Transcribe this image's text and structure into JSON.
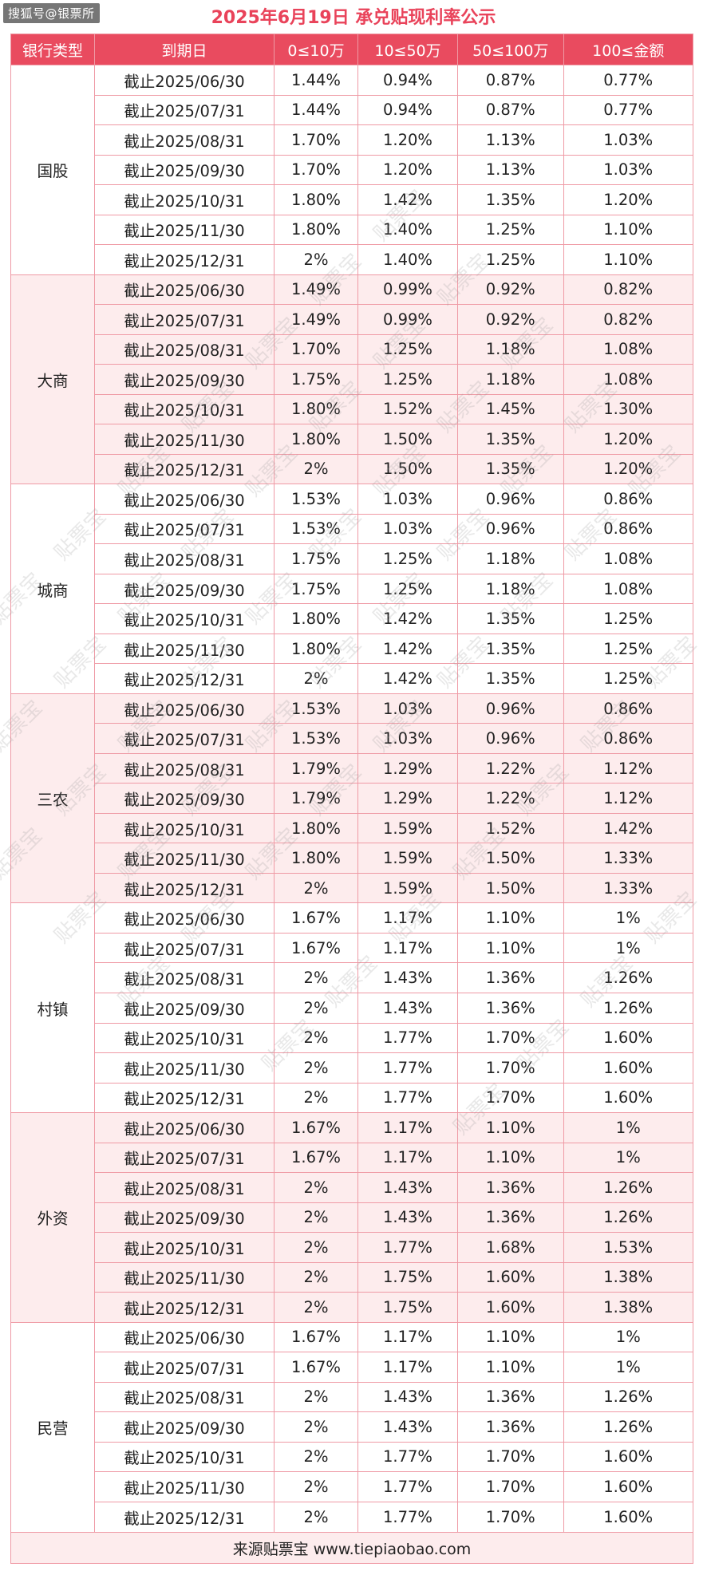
{
  "watermark_top": "搜狐号@银票所",
  "title": "2025年6月19日 承兑贴现利率公示",
  "headers": [
    "银行类型",
    "到期日",
    "0≤10万",
    "10≤50万",
    "50≤100万",
    "100≤金额"
  ],
  "groups": [
    {
      "name": "国股",
      "rows": [
        [
          "截止2025/06/30",
          "1.44%",
          "0.94%",
          "0.87%",
          "0.77%"
        ],
        [
          "截止2025/07/31",
          "1.44%",
          "0.94%",
          "0.87%",
          "0.77%"
        ],
        [
          "截止2025/08/31",
          "1.70%",
          "1.20%",
          "1.13%",
          "1.03%"
        ],
        [
          "截止2025/09/30",
          "1.70%",
          "1.20%",
          "1.13%",
          "1.03%"
        ],
        [
          "截止2025/10/31",
          "1.80%",
          "1.42%",
          "1.35%",
          "1.20%"
        ],
        [
          "截止2025/11/30",
          "1.80%",
          "1.40%",
          "1.25%",
          "1.10%"
        ],
        [
          "截止2025/12/31",
          "2%",
          "1.40%",
          "1.25%",
          "1.10%"
        ]
      ]
    },
    {
      "name": "大商",
      "rows": [
        [
          "截止2025/06/30",
          "1.49%",
          "0.99%",
          "0.92%",
          "0.82%"
        ],
        [
          "截止2025/07/31",
          "1.49%",
          "0.99%",
          "0.92%",
          "0.82%"
        ],
        [
          "截止2025/08/31",
          "1.70%",
          "1.25%",
          "1.18%",
          "1.08%"
        ],
        [
          "截止2025/09/30",
          "1.75%",
          "1.25%",
          "1.18%",
          "1.08%"
        ],
        [
          "截止2025/10/31",
          "1.80%",
          "1.52%",
          "1.45%",
          "1.30%"
        ],
        [
          "截止2025/11/30",
          "1.80%",
          "1.50%",
          "1.35%",
          "1.20%"
        ],
        [
          "截止2025/12/31",
          "2%",
          "1.50%",
          "1.35%",
          "1.20%"
        ]
      ]
    },
    {
      "name": "城商",
      "rows": [
        [
          "截止2025/06/30",
          "1.53%",
          "1.03%",
          "0.96%",
          "0.86%"
        ],
        [
          "截止2025/07/31",
          "1.53%",
          "1.03%",
          "0.96%",
          "0.86%"
        ],
        [
          "截止2025/08/31",
          "1.75%",
          "1.25%",
          "1.18%",
          "1.08%"
        ],
        [
          "截止2025/09/30",
          "1.75%",
          "1.25%",
          "1.18%",
          "1.08%"
        ],
        [
          "截止2025/10/31",
          "1.80%",
          "1.42%",
          "1.35%",
          "1.25%"
        ],
        [
          "截止2025/11/30",
          "1.80%",
          "1.42%",
          "1.35%",
          "1.25%"
        ],
        [
          "截止2025/12/31",
          "2%",
          "1.42%",
          "1.35%",
          "1.25%"
        ]
      ]
    },
    {
      "name": "三农",
      "rows": [
        [
          "截止2025/06/30",
          "1.53%",
          "1.03%",
          "0.96%",
          "0.86%"
        ],
        [
          "截止2025/07/31",
          "1.53%",
          "1.03%",
          "0.96%",
          "0.86%"
        ],
        [
          "截止2025/08/31",
          "1.79%",
          "1.29%",
          "1.22%",
          "1.12%"
        ],
        [
          "截止2025/09/30",
          "1.79%",
          "1.29%",
          "1.22%",
          "1.12%"
        ],
        [
          "截止2025/10/31",
          "1.80%",
          "1.59%",
          "1.52%",
          "1.42%"
        ],
        [
          "截止2025/11/30",
          "1.80%",
          "1.59%",
          "1.50%",
          "1.33%"
        ],
        [
          "截止2025/12/31",
          "2%",
          "1.59%",
          "1.50%",
          "1.33%"
        ]
      ]
    },
    {
      "name": "村镇",
      "rows": [
        [
          "截止2025/06/30",
          "1.67%",
          "1.17%",
          "1.10%",
          "1%"
        ],
        [
          "截止2025/07/31",
          "1.67%",
          "1.17%",
          "1.10%",
          "1%"
        ],
        [
          "截止2025/08/31",
          "2%",
          "1.43%",
          "1.36%",
          "1.26%"
        ],
        [
          "截止2025/09/30",
          "2%",
          "1.43%",
          "1.36%",
          "1.26%"
        ],
        [
          "截止2025/10/31",
          "2%",
          "1.77%",
          "1.70%",
          "1.60%"
        ],
        [
          "截止2025/11/30",
          "2%",
          "1.77%",
          "1.70%",
          "1.60%"
        ],
        [
          "截止2025/12/31",
          "2%",
          "1.77%",
          "1.70%",
          "1.60%"
        ]
      ]
    },
    {
      "name": "外资",
      "rows": [
        [
          "截止2025/06/30",
          "1.67%",
          "1.17%",
          "1.10%",
          "1%"
        ],
        [
          "截止2025/07/31",
          "1.67%",
          "1.17%",
          "1.10%",
          "1%"
        ],
        [
          "截止2025/08/31",
          "2%",
          "1.43%",
          "1.36%",
          "1.26%"
        ],
        [
          "截止2025/09/30",
          "2%",
          "1.43%",
          "1.36%",
          "1.26%"
        ],
        [
          "截止2025/10/31",
          "2%",
          "1.77%",
          "1.68%",
          "1.53%"
        ],
        [
          "截止2025/11/30",
          "2%",
          "1.75%",
          "1.60%",
          "1.38%"
        ],
        [
          "截止2025/12/31",
          "2%",
          "1.75%",
          "1.60%",
          "1.38%"
        ]
      ]
    },
    {
      "name": "民营",
      "rows": [
        [
          "截止2025/06/30",
          "1.67%",
          "1.17%",
          "1.10%",
          "1%"
        ],
        [
          "截止2025/07/31",
          "1.67%",
          "1.17%",
          "1.10%",
          "1%"
        ],
        [
          "截止2025/08/31",
          "2%",
          "1.43%",
          "1.36%",
          "1.26%"
        ],
        [
          "截止2025/09/30",
          "2%",
          "1.43%",
          "1.36%",
          "1.26%"
        ],
        [
          "截止2025/10/31",
          "2%",
          "1.77%",
          "1.70%",
          "1.60%"
        ],
        [
          "截止2025/11/30",
          "2%",
          "1.77%",
          "1.70%",
          "1.60%"
        ],
        [
          "截止2025/12/31",
          "2%",
          "1.77%",
          "1.70%",
          "1.60%"
        ]
      ]
    }
  ],
  "footer": "来源贴票宝 www.tiepiaobao.com",
  "background_watermark": "贴票宝",
  "colors": {
    "accent": "#e9435a",
    "header_bg": "#e94b5f",
    "alt_row": "#fdeced",
    "border": "#ef9aa5"
  }
}
